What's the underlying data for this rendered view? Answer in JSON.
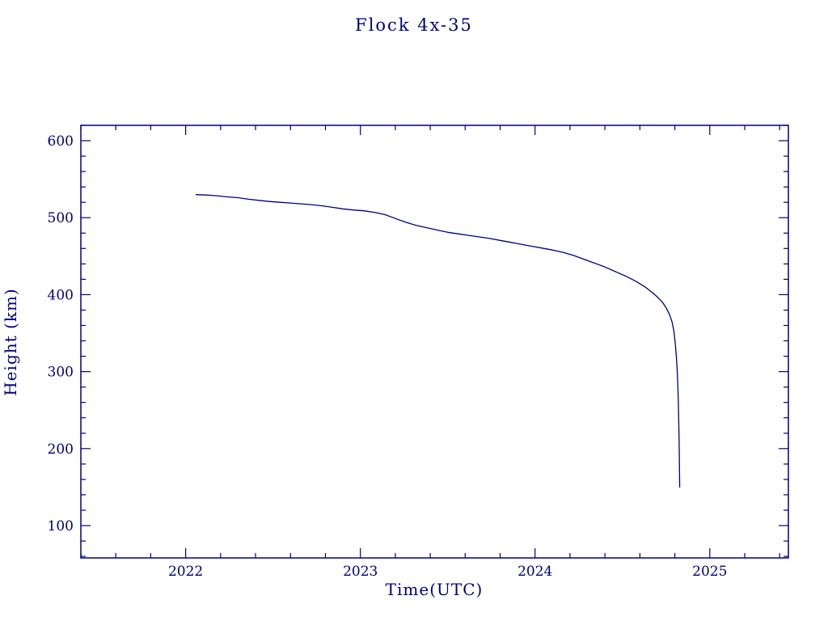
{
  "chart_data": {
    "type": "line",
    "title": "Flock 4x-35",
    "xlabel": "Time(UTC)",
    "ylabel": "Height (km)",
    "xlim": [
      2021.4,
      2025.45
    ],
    "ylim": [
      58,
      620
    ],
    "xticks": {
      "major": [
        2022,
        2023,
        2024,
        2025
      ],
      "minor_step": 0.2
    },
    "yticks": {
      "major": [
        100,
        200,
        300,
        400,
        500,
        600
      ],
      "minor_step": 20
    },
    "grid": false,
    "legend": "none",
    "axis_color": "#000080",
    "line_color": "#000080",
    "background": "#ffffff",
    "points": [
      [
        2022.06,
        530
      ],
      [
        2022.12,
        529.5
      ],
      [
        2022.18,
        528.5
      ],
      [
        2022.24,
        527
      ],
      [
        2022.3,
        526
      ],
      [
        2022.36,
        524
      ],
      [
        2022.42,
        522.5
      ],
      [
        2022.48,
        521
      ],
      [
        2022.54,
        520
      ],
      [
        2022.6,
        519
      ],
      [
        2022.66,
        518
      ],
      [
        2022.72,
        517
      ],
      [
        2022.78,
        515.5
      ],
      [
        2022.84,
        513.5
      ],
      [
        2022.9,
        511.5
      ],
      [
        2022.96,
        510
      ],
      [
        2023.02,
        509
      ],
      [
        2023.08,
        507
      ],
      [
        2023.14,
        504
      ],
      [
        2023.2,
        499
      ],
      [
        2023.26,
        494
      ],
      [
        2023.32,
        490
      ],
      [
        2023.38,
        487
      ],
      [
        2023.44,
        484
      ],
      [
        2023.5,
        481
      ],
      [
        2023.56,
        479
      ],
      [
        2023.62,
        477
      ],
      [
        2023.68,
        475
      ],
      [
        2023.74,
        473
      ],
      [
        2023.8,
        470.5
      ],
      [
        2023.86,
        468
      ],
      [
        2023.92,
        465.5
      ],
      [
        2023.98,
        463
      ],
      [
        2024.04,
        460.5
      ],
      [
        2024.1,
        458
      ],
      [
        2024.16,
        455
      ],
      [
        2024.22,
        451
      ],
      [
        2024.28,
        446
      ],
      [
        2024.34,
        441
      ],
      [
        2024.4,
        436
      ],
      [
        2024.46,
        430
      ],
      [
        2024.52,
        424
      ],
      [
        2024.58,
        417
      ],
      [
        2024.63,
        410
      ],
      [
        2024.67,
        403
      ],
      [
        2024.7,
        397
      ],
      [
        2024.73,
        390
      ],
      [
        2024.75,
        383
      ],
      [
        2024.77,
        374
      ],
      [
        2024.785,
        364
      ],
      [
        2024.795,
        352
      ],
      [
        2024.802,
        338
      ],
      [
        2024.808,
        322
      ],
      [
        2024.813,
        304
      ],
      [
        2024.817,
        284
      ],
      [
        2024.82,
        262
      ],
      [
        2024.822,
        240
      ],
      [
        2024.824,
        215
      ],
      [
        2024.826,
        185
      ],
      [
        2024.828,
        150
      ]
    ]
  }
}
